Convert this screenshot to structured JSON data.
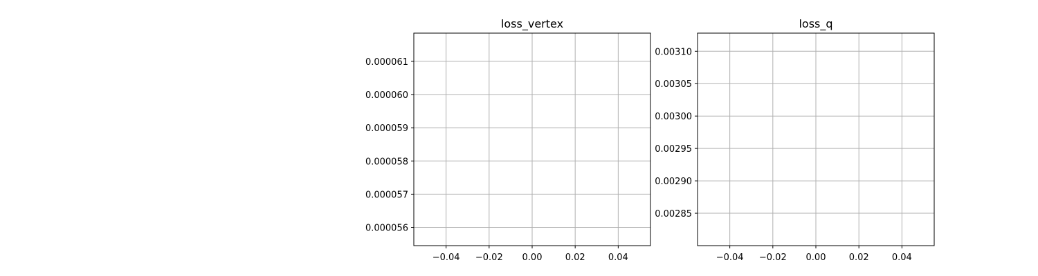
{
  "chart_data": [
    {
      "type": "line",
      "title": "loss_vertex",
      "xlabel": "",
      "ylabel": "",
      "grid": true,
      "xlim": [
        -0.055,
        0.055
      ],
      "ylim": [
        5.545e-05,
        6.185e-05
      ],
      "xticks": [
        -0.04,
        -0.02,
        0.0,
        0.02,
        0.04
      ],
      "xtick_labels": [
        "−0.04",
        "−0.02",
        "0.00",
        "0.02",
        "0.04"
      ],
      "yticks": [
        5.6e-05,
        5.7e-05,
        5.8e-05,
        5.9e-05,
        6e-05,
        6.1e-05
      ],
      "ytick_labels": [
        "0.000056",
        "0.000057",
        "0.000058",
        "0.000059",
        "0.000060",
        "0.000061"
      ],
      "series": []
    },
    {
      "type": "line",
      "title": "loss_q",
      "xlabel": "",
      "ylabel": "",
      "grid": true,
      "xlim": [
        -0.055,
        0.055
      ],
      "ylim": [
        0.0028,
        0.003128
      ],
      "xticks": [
        -0.04,
        -0.02,
        0.0,
        0.02,
        0.04
      ],
      "xtick_labels": [
        "−0.04",
        "−0.02",
        "0.00",
        "0.02",
        "0.04"
      ],
      "yticks": [
        0.00285,
        0.0029,
        0.00295,
        0.003,
        0.00305,
        0.0031
      ],
      "ytick_labels": [
        "0.00285",
        "0.00290",
        "0.00295",
        "0.00300",
        "0.00305",
        "0.00310"
      ],
      "series": []
    }
  ],
  "colors": {
    "grid": "#b0b0b0",
    "axis": "#000000",
    "background": "#ffffff"
  }
}
